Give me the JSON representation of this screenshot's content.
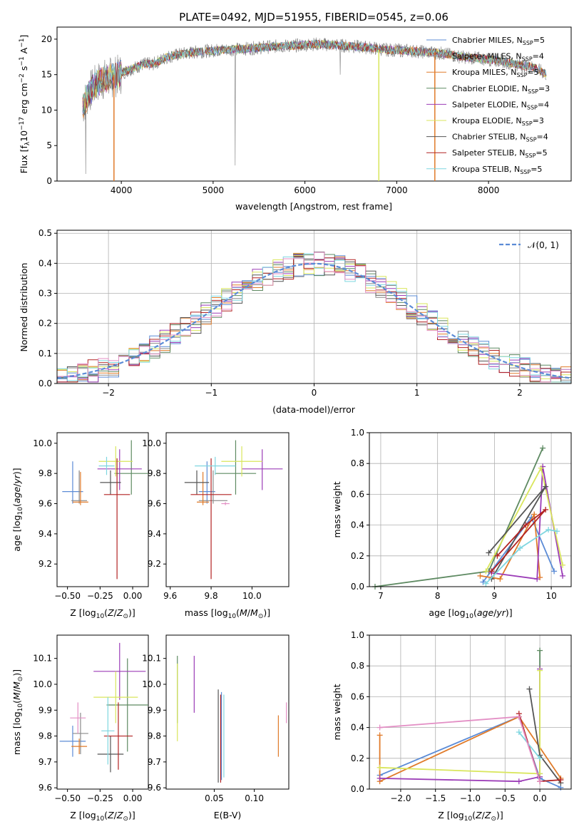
{
  "chart_data": [
    {
      "type": "line",
      "title": "PLATE=0492, MJD=51955, FIBERID=0545, z=0.06",
      "xlabel": "wavelength [Angstrom, rest frame]",
      "ylabel": "Flux [f_λ10^-17 erg cm^-2 s^-1 A^-1]",
      "xlim": [
        3300,
        8900
      ],
      "ylim": [
        0,
        21.7
      ],
      "xticks": [
        "4000",
        "5000",
        "6000",
        "7000",
        "8000"
      ],
      "yticks": [
        "0",
        "5",
        "10",
        "15",
        "20"
      ],
      "legend_position": "right",
      "data_series": {
        "name": "",
        "color": "#808080"
      },
      "spectrum_continuum": {
        "x": [
          3580,
          3650,
          3750,
          3850,
          3950,
          4050,
          4150,
          4250,
          4350,
          4500,
          4700,
          4900,
          5100,
          5300,
          5500,
          5700,
          5900,
          6100,
          6300,
          6500,
          6700,
          6900,
          7100,
          7300,
          7500,
          7700,
          7900,
          8100,
          8300,
          8500,
          8630
        ],
        "y": [
          10.5,
          12.5,
          14.0,
          14.5,
          14.8,
          15.5,
          16.0,
          16.5,
          16.5,
          17.5,
          18.0,
          18.3,
          18.5,
          18.6,
          18.8,
          19.0,
          19.1,
          19.3,
          19.2,
          19.0,
          18.8,
          18.5,
          18.4,
          18.2,
          18.0,
          17.5,
          17.3,
          17.0,
          16.5,
          16.0,
          15.0
        ]
      },
      "series": [
        {
          "name": "Chabrier MILES",
          "nssp": "5",
          "color": "#5b8bd6"
        },
        {
          "name": "Salpeter MILES",
          "nssp": "4",
          "color": "#8a8a8a"
        },
        {
          "name": "Kroupa MILES",
          "nssp": "5",
          "color": "#e07b2a"
        },
        {
          "name": "Chabrier ELODIE",
          "nssp": "3",
          "color": "#5e8a62"
        },
        {
          "name": "Salpeter ELODIE",
          "nssp": "4",
          "color": "#9b3cb7"
        },
        {
          "name": "Kroupa ELODIE",
          "nssp": "3",
          "color": "#d9e65c"
        },
        {
          "name": "Chabrier STELIB",
          "nssp": "4",
          "color": "#555555"
        },
        {
          "name": "Salpeter STELIB",
          "nssp": "5",
          "color": "#b22222"
        },
        {
          "name": "Kroupa STELIB",
          "nssp": "5",
          "color": "#7fd6e0"
        }
      ]
    },
    {
      "type": "line",
      "xlabel": "(data-model)/error",
      "ylabel": "Normed distribution",
      "xlim": [
        -2.5,
        2.5
      ],
      "ylim": [
        0,
        0.51
      ],
      "xticks": [
        "−2",
        "−1",
        "0",
        "1",
        "2"
      ],
      "yticks": [
        "0.0",
        "0.1",
        "0.2",
        "0.3",
        "0.4",
        "0.5"
      ],
      "legend": "𝒩(0, 1)",
      "legend_position": "top-right",
      "grid": true
    },
    {
      "type": "scatter",
      "xlabel": "Z [log10(Z/Z⊙)]",
      "ylabel": "age  [log10(age/yr)]",
      "xlim": [
        -0.58,
        0.12
      ],
      "ylim": [
        9.05,
        10.07
      ],
      "xticks": [
        "−0.50",
        "−0.25",
        "0.00"
      ],
      "yticks": [
        "9.2",
        "9.4",
        "9.6",
        "9.8",
        "10.0"
      ],
      "points": [
        {
          "x": -0.46,
          "y": 9.68,
          "xerr": 0.08,
          "yerr": [
            0.08,
            0.2
          ],
          "color": "#5b8bd6"
        },
        {
          "x": -0.41,
          "y": 9.62,
          "xerr": 0.06,
          "yerr": [
            0.02,
            0.2
          ],
          "color": "#8a8a8a"
        },
        {
          "x": -0.4,
          "y": 9.61,
          "xerr": 0.06,
          "yerr": [
            0.02,
            0.2
          ],
          "color": "#e07b2a"
        },
        {
          "x": -0.01,
          "y": 9.8,
          "xerr": 0.13,
          "yerr": [
            0.14,
            0.22
          ],
          "color": "#5e8a62"
        },
        {
          "x": -0.1,
          "y": 9.83,
          "xerr": 0.17,
          "yerr": [
            0.14,
            0.13
          ],
          "color": "#9b3cb7"
        },
        {
          "x": -0.13,
          "y": 9.88,
          "xerr": 0.13,
          "yerr": [
            0.1,
            0.1
          ],
          "color": "#d9e65c"
        },
        {
          "x": -0.17,
          "y": 9.74,
          "xerr": 0.08,
          "yerr": [
            0.08,
            0.08
          ],
          "color": "#555555"
        },
        {
          "x": -0.12,
          "y": 9.66,
          "xerr": 0.1,
          "yerr": [
            0.56,
            0.24
          ],
          "color": "#b22222"
        },
        {
          "x": -0.2,
          "y": 9.85,
          "xerr": 0.06,
          "yerr": [
            0.06,
            0.06
          ],
          "color": "#7fd6e0"
        }
      ]
    },
    {
      "type": "scatter",
      "xlabel": "mass [log10(M/M⊙)]",
      "ylabel": "",
      "xlim": [
        9.58,
        10.18
      ],
      "ylim": [
        9.05,
        10.07
      ],
      "xticks": [
        "9.6",
        "9.8",
        "10.0"
      ],
      "yticks": [
        "9.2",
        "9.4",
        "9.6",
        "9.8",
        "10.0"
      ],
      "points": [
        {
          "x": 9.78,
          "y": 9.68,
          "xerr": 0.04,
          "yerr": [
            0.08,
            0.2
          ],
          "color": "#5b8bd6"
        },
        {
          "x": 9.81,
          "y": 9.62,
          "xerr": 0.07,
          "yerr": [
            0.02,
            0.2
          ],
          "color": "#8a8a8a"
        },
        {
          "x": 9.76,
          "y": 9.61,
          "xerr": 0.03,
          "yerr": [
            0.02,
            0.2
          ],
          "color": "#e07b2a"
        },
        {
          "x": 9.92,
          "y": 9.8,
          "xerr": 0.1,
          "yerr": [
            0.14,
            0.22
          ],
          "color": "#5e8a62"
        },
        {
          "x": 10.05,
          "y": 9.83,
          "xerr": 0.1,
          "yerr": [
            0.14,
            0.13
          ],
          "color": "#9b3cb7"
        },
        {
          "x": 9.95,
          "y": 9.88,
          "xerr": 0.1,
          "yerr": [
            0.1,
            0.1
          ],
          "color": "#d9e65c"
        },
        {
          "x": 9.73,
          "y": 9.74,
          "xerr": 0.06,
          "yerr": [
            0.08,
            0.08
          ],
          "color": "#555555"
        },
        {
          "x": 9.8,
          "y": 9.66,
          "xerr": 0.1,
          "yerr": [
            0.56,
            0.24
          ],
          "color": "#b22222"
        },
        {
          "x": 9.82,
          "y": 9.85,
          "xerr": 0.1,
          "yerr": [
            0.06,
            0.06
          ],
          "color": "#7fd6e0"
        },
        {
          "x": 9.87,
          "y": 9.6,
          "xerr": 0.02,
          "yerr": [
            0.01,
            0.01
          ],
          "color": "#e38fc5"
        }
      ]
    },
    {
      "type": "line",
      "xlabel": "age  [log10(age/yr)]",
      "ylabel": "mass weight",
      "xlim": [
        6.8,
        10.35
      ],
      "ylim": [
        0,
        1.0
      ],
      "xticks": [
        "7",
        "8",
        "9",
        "10"
      ],
      "yticks": [
        "0.0",
        "0.2",
        "0.4",
        "0.6",
        "0.8",
        "1.0"
      ],
      "grid": true,
      "series": [
        {
          "color": "#5b8bd6",
          "x": [
            8.8,
            9.65,
            10.05
          ],
          "y": [
            0.03,
            0.45,
            0.1
          ]
        },
        {
          "color": "#e07b2a",
          "x": [
            8.75,
            9.1,
            9.7,
            9.8
          ],
          "y": [
            0.07,
            0.05,
            0.47,
            0.06
          ]
        },
        {
          "color": "#5e8a62",
          "x": [
            6.9,
            8.9,
            9.85
          ],
          "y": [
            0.0,
            0.1,
            0.9
          ]
        },
        {
          "color": "#9b3cb7",
          "x": [
            8.95,
            9.75,
            9.85,
            10.2
          ],
          "y": [
            0.09,
            0.05,
            0.78,
            0.07
          ]
        },
        {
          "color": "#d9e65c",
          "x": [
            8.85,
            9.82,
            10.2
          ],
          "y": [
            0.1,
            0.77,
            0.14
          ]
        },
        {
          "color": "#555555",
          "x": [
            8.9,
            9.9,
            8.95
          ],
          "y": [
            0.22,
            0.65,
            0.05
          ]
        },
        {
          "color": "#b22222",
          "x": [
            8.95,
            9.9,
            9.55,
            9.05
          ],
          "y": [
            0.1,
            0.5,
            0.4,
            0.2
          ]
        },
        {
          "color": "#7fd6e0",
          "x": [
            8.85,
            9.45,
            9.95,
            10.1
          ],
          "y": [
            0.02,
            0.25,
            0.37,
            0.36
          ]
        }
      ]
    },
    {
      "type": "scatter",
      "xlabel": "Z [log10(Z/Z⊙)]",
      "ylabel": "mass [log10(M/M⊙)]",
      "xlim": [
        -0.58,
        0.12
      ],
      "ylim": [
        9.595,
        10.19
      ],
      "xticks": [
        "−0.50",
        "−0.25",
        "0.00"
      ],
      "yticks": [
        "9.6",
        "9.7",
        "9.8",
        "9.9",
        "10.0",
        "10.1"
      ],
      "points": [
        {
          "x": -0.46,
          "y": 9.78,
          "xerr": 0.1,
          "yerr": 0.06,
          "color": "#5b8bd6"
        },
        {
          "x": -0.4,
          "y": 9.81,
          "xerr": 0.06,
          "yerr": 0.08,
          "color": "#8a8a8a"
        },
        {
          "x": -0.41,
          "y": 9.76,
          "xerr": 0.06,
          "yerr": 0.03,
          "color": "#e07b2a"
        },
        {
          "x": -0.04,
          "y": 9.92,
          "xerr": 0.16,
          "yerr": 0.18,
          "color": "#5e8a62"
        },
        {
          "x": -0.1,
          "y": 10.05,
          "xerr": 0.2,
          "yerr": 0.11,
          "color": "#9b3cb7"
        },
        {
          "x": -0.13,
          "y": 9.95,
          "xerr": 0.17,
          "yerr": 0.1,
          "color": "#d9e65c"
        },
        {
          "x": -0.17,
          "y": 9.73,
          "xerr": 0.1,
          "yerr": 0.07,
          "color": "#555555"
        },
        {
          "x": -0.11,
          "y": 9.8,
          "xerr": 0.11,
          "yerr": 0.13,
          "color": "#b22222"
        },
        {
          "x": -0.19,
          "y": 9.82,
          "xerr": 0.05,
          "yerr": 0.13,
          "color": "#7fd6e0"
        },
        {
          "x": -0.42,
          "y": 9.87,
          "xerr": 0.06,
          "yerr": 0.06,
          "color": "#e38fc5"
        }
      ]
    },
    {
      "type": "scatter",
      "xlabel": "E(B-V)",
      "ylabel": "",
      "xlim": [
        -0.01,
        0.143
      ],
      "ylim": [
        9.595,
        10.19
      ],
      "xticks": [
        "0.05",
        "0.10"
      ],
      "yticks": [
        "9.6",
        "9.7",
        "9.8",
        "9.9",
        "10.0",
        "10.1"
      ],
      "points": [
        {
          "x": 0.059,
          "y": 9.8,
          "yerr": 0.17,
          "color": "#5b8bd6"
        },
        {
          "x": 0.13,
          "y": 9.8,
          "yerr": 0.08,
          "color": "#e07b2a"
        },
        {
          "x": 0.004,
          "y": 9.98,
          "yerr": 0.13,
          "color": "#5e8a62"
        },
        {
          "x": 0.025,
          "y": 10.0,
          "yerr": 0.11,
          "color": "#9b3cb7"
        },
        {
          "x": 0.004,
          "y": 9.93,
          "yerr": 0.15,
          "color": "#d9e65c"
        },
        {
          "x": 0.055,
          "y": 9.8,
          "yerr": 0.18,
          "color": "#555555"
        },
        {
          "x": 0.058,
          "y": 9.79,
          "yerr": 0.17,
          "color": "#b22222"
        },
        {
          "x": 0.062,
          "y": 9.8,
          "yerr": 0.16,
          "color": "#7fd6e0"
        },
        {
          "x": 0.14,
          "y": 9.89,
          "yerr": 0.04,
          "color": "#e38fc5"
        }
      ]
    },
    {
      "type": "line",
      "xlabel": "Z [log10(Z/Z⊙)]",
      "ylabel": "mass weight",
      "xlim": [
        -2.45,
        0.45
      ],
      "ylim": [
        0,
        1.0
      ],
      "xticks": [
        "−2.0",
        "−1.5",
        "−1.0",
        "−0.5",
        "0.0"
      ],
      "yticks": [
        "0.0",
        "0.2",
        "0.4",
        "0.6",
        "0.8",
        "1.0"
      ],
      "grid": true,
      "series": [
        {
          "color": "#5b8bd6",
          "x": [
            -2.3,
            -0.3,
            0.0,
            0.3
          ],
          "y": [
            0.09,
            0.47,
            0.07,
            0.01
          ]
        },
        {
          "color": "#e07b2a",
          "x": [
            -2.3,
            -2.3,
            -0.3,
            0.3
          ],
          "y": [
            0.35,
            0.05,
            0.47,
            0.07
          ]
        },
        {
          "color": "#5e8a62",
          "x": [
            0.0,
            0.0
          ],
          "y": [
            0.9,
            0.1
          ]
        },
        {
          "color": "#9b3cb7",
          "x": [
            -2.3,
            -0.3,
            0.0,
            0.0
          ],
          "y": [
            0.07,
            0.05,
            0.08,
            0.78
          ]
        },
        {
          "color": "#d9e65c",
          "x": [
            -2.3,
            0.0,
            0.0
          ],
          "y": [
            0.14,
            0.1,
            0.77
          ]
        },
        {
          "color": "#555555",
          "x": [
            -0.15,
            0.0,
            0.3
          ],
          "y": [
            0.65,
            0.22,
            0.04
          ]
        },
        {
          "color": "#b22222",
          "x": [
            -0.3,
            0.0,
            0.3
          ],
          "y": [
            0.49,
            0.05,
            0.06
          ]
        },
        {
          "color": "#7fd6e0",
          "x": [
            -0.3,
            0.0
          ],
          "y": [
            0.37,
            0.2
          ]
        },
        {
          "color": "#e38fc5",
          "x": [
            -2.3,
            -0.3,
            0.0
          ],
          "y": [
            0.4,
            0.47,
            0.05
          ]
        }
      ]
    }
  ]
}
